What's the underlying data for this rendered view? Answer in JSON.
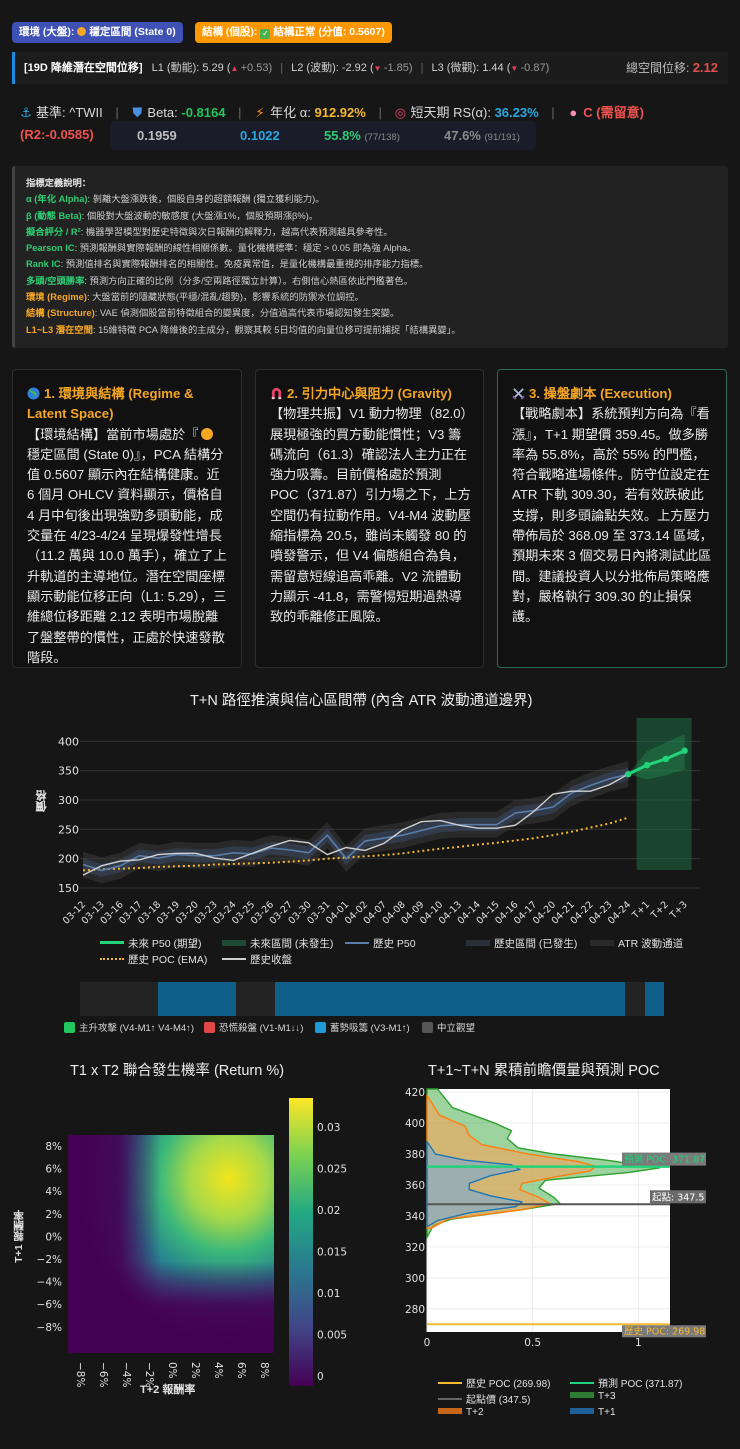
{
  "badges": {
    "regime": {
      "prefix": "環境 (大盤):",
      "value": "穩定區間 (State 0)",
      "icon": "sun-icon",
      "color": "#3f51b5"
    },
    "structure": {
      "prefix": "結構 (個股):",
      "value": "結構正常 (分值: 0.5607)",
      "icon": "check-icon",
      "color": "#ff9800"
    }
  },
  "latent": {
    "title": "[19D 降維潛在空間位移]",
    "l1_label": "L1 (動能): 5.29 (",
    "l1_delta": "+0.53)",
    "l2_label": "L2 (波動): -2.92 (",
    "l2_delta": "-1.85)",
    "l3_label": "L3 (微觀): 1.44 (",
    "l3_delta": "-0.87)",
    "total_label": "總空間位移:",
    "total_value": "2.12"
  },
  "stats": {
    "benchmark_label": "基準: ^TWII",
    "beta_label": "Beta:",
    "beta_value": "-0.8164",
    "alpha_label": "年化 α:",
    "alpha_value": "912.92%",
    "rs_label": "短天期 RS(α):",
    "rs_value": "36.23%",
    "grade": "C (需留意)",
    "r2": "(R2:-0.0585)",
    "pearson_ic": "0.1959",
    "rank_ic": "0.1022",
    "long_win": "55.8%",
    "long_win_detail": "(77/138)",
    "short_win": "47.6%",
    "short_win_detail": "(91/191)"
  },
  "definitions": {
    "title": "指標定義說明：",
    "items": [
      {
        "term": "α (年化 Alpha)",
        "desc": ": 剝離大盤漲跌後，個股自身的超額報酬 (獨立獲利能力)。",
        "color": "green"
      },
      {
        "term": "β (動態 Beta)",
        "desc": ": 個股對大盤波動的敏感度 (大盤漲1%，個股預期漲β%)。",
        "color": "green"
      },
      {
        "term": "擬合評分 / R²",
        "desc": ": 機器學習模型對歷史特徵與次日報酬的解釋力，越高代表預測越具參考性。",
        "color": "green"
      },
      {
        "term": "Pearson IC",
        "desc": ": 預測報酬與實際報酬的線性相關係數。量化機構標準：穩定 > 0.05 即為強 Alpha。",
        "color": "green"
      },
      {
        "term": "Rank IC",
        "desc": ": 預測值排名與實際報酬排名的相關性。免疫異常值，是量化機構最重視的排序能力指標。",
        "color": "green"
      },
      {
        "term": "多頭/空頭勝率",
        "desc": ": 預測方向正確的比例（分多/空兩路徑獨立計算）。右側信心熱區依此門檻著色。",
        "color": "green"
      },
      {
        "term": "環境 (Regime)",
        "desc": ": 大盤當前的隱藏狀態(平穩/混亂/趨勢)，影響系統的防禦水位調控。",
        "color": "orange"
      },
      {
        "term": "結構 (Structure)",
        "desc": ": VAE 偵測個股當前特徵組合的變異度，分值過高代表市場認知發生突變。",
        "color": "orange"
      },
      {
        "term": "L1~L3 潛在空間",
        "desc": ": 15維特徵 PCA 降維後的主成分，觀察其較 5日均值的向量位移可提前捕捉「結構異變」。",
        "color": "orange"
      }
    ]
  },
  "cards": [
    {
      "title": "1. 環境與結構 (Regime & Latent Space)",
      "icon": "globe-icon",
      "body_a": "【環境結構】當前市場處於『",
      "body_b": "穩定區間 (State 0)』，PCA 結構分值 0.5607 顯示內在結構健康。近 6 個月 OHLCV 資料顯示，價格自 4 月中旬後出現強勁多頭動能，成交量在 4/23-4/24 呈現爆發性增長（11.2 萬與 10.0 萬手），確立了上升軌道的主導地位。潛在空間座標顯示動能位移正向（L1: 5.29），三維總位移距離 2.12 表明市場脫離了盤整帶的慣性，正處於快速發散階段。"
    },
    {
      "title": "2. 引力中心與阻力 (Gravity)",
      "icon": "magnet-icon",
      "body": "【物理共振】V1 動力物理（82.0）展現極強的買方動能慣性；V3 籌碼流向（61.3）確認法人主力正在強力吸籌。目前價格處於預測 POC（371.87）引力場之下，上方空間仍有拉動作用。V4-M4 波動壓縮指標為 20.5，雖尚未觸發 80 的噴發警示，但 V4 偏態組合為負，需留意短線追高乖離。V2 流體動力顯示 -41.8，需警惕短期過熱導致的乖離修正風險。"
    },
    {
      "title": "3. 操盤劇本 (Execution)",
      "icon": "crossed-swords-icon",
      "body": "【戰略劇本】系統預判方向為『看漲』，T+1 期望價 359.45。做多勝率為 55.8%，高於 55% 的門檻，符合戰略進場條件。防守位設定在 ATR 下軌 309.30，若有效跌破此支撐，則多頭論點失效。上方壓力帶佈局於 368.09 至 373.14 區域，預期未來 3 個交易日內將測試此區間。建議投資人以分批佈局策略應對，嚴格執行 309.30 的止損保護。"
    }
  ],
  "chart_data": [
    {
      "type": "line",
      "title": "T+N 路徑推演與信心區間帶 (內含 ATR 波動通道邊界)",
      "xlabel": "",
      "ylabel": "價格",
      "ylim": [
        140,
        420
      ],
      "yticks": [
        150,
        200,
        250,
        300,
        350,
        400
      ],
      "categories": [
        "03-12",
        "03-13",
        "03-16",
        "03-17",
        "03-18",
        "03-19",
        "03-20",
        "03-23",
        "03-24",
        "03-25",
        "03-26",
        "03-27",
        "03-30",
        "03-31",
        "04-01",
        "04-02",
        "04-07",
        "04-08",
        "04-09",
        "04-10",
        "04-13",
        "04-14",
        "04-15",
        "04-16",
        "04-17",
        "04-20",
        "04-21",
        "04-22",
        "04-23",
        "04-24",
        "T+1",
        "T+2",
        "T+3"
      ],
      "series": [
        {
          "name": "歷史收盤",
          "color": "#d0d0d0",
          "values": [
            172,
            188,
            196,
            198,
            207,
            209,
            209,
            201,
            197,
            209,
            221,
            231,
            227,
            207,
            219,
            214,
            226,
            249,
            263,
            265,
            257,
            252,
            252,
            257,
            281,
            310,
            315,
            315,
            326,
            344,
            null,
            null,
            null
          ]
        },
        {
          "name": "歷史 P50",
          "color": "#5a7ca8",
          "values": [
            190,
            180,
            188,
            205,
            201,
            207,
            205,
            205,
            210,
            208,
            218,
            215,
            210,
            240,
            200,
            230,
            235,
            240,
            248,
            256,
            258,
            258,
            258,
            278,
            282,
            288,
            312,
            325,
            336,
            344,
            null,
            null,
            null
          ]
        },
        {
          "name": "歷史 POC (EMA)",
          "color": "#f5b82e",
          "values": [
            180,
            182,
            183,
            184,
            186,
            187,
            188,
            190,
            191,
            192,
            193,
            195,
            197,
            200,
            202,
            204,
            206,
            209,
            213,
            217,
            220,
            224,
            227,
            231,
            235,
            240,
            246,
            253,
            260,
            270,
            null,
            null,
            null
          ]
        },
        {
          "name": "未來 P50 (期望)",
          "color": "#22d37a",
          "values": [
            null,
            null,
            null,
            null,
            null,
            null,
            null,
            null,
            null,
            null,
            null,
            null,
            null,
            null,
            null,
            null,
            null,
            null,
            null,
            null,
            null,
            null,
            null,
            null,
            null,
            null,
            null,
            null,
            null,
            344,
            359.45,
            370,
            384
          ]
        }
      ],
      "legend": [
        "未來 P50 (期望)",
        "未來區間 (未發生)",
        "歷史 P50",
        "歷史區間 (已發生)",
        "ATR 波動通道",
        "歷史 POC (EMA)",
        "歷史收盤"
      ],
      "regime_bar": {
        "segments": [
          {
            "state": "neutral",
            "start": 0,
            "end": 4
          },
          {
            "state": "accumulate",
            "start": 4,
            "end": 8
          },
          {
            "state": "neutral",
            "start": 8,
            "end": 10
          },
          {
            "state": "accumulate",
            "start": 10,
            "end": 28
          },
          {
            "state": "neutral",
            "start": 28,
            "end": 29
          },
          {
            "state": "accumulate",
            "start": 29,
            "end": 30
          }
        ],
        "legend": [
          {
            "label": "主升攻擊 (V4-M1↑ V4-M4↑)",
            "color": "#22c55e"
          },
          {
            "label": "恐慌殺盤 (V1-M1↓↓)",
            "color": "#e04848"
          },
          {
            "label": "蓄勢吸籌 (V3-M1↑)",
            "color": "#1f9ad6"
          },
          {
            "label": "中立觀望",
            "color": "#555555"
          }
        ]
      }
    },
    {
      "type": "heatmap",
      "title": "T1 x T2 聯合發生機率 (Return %)",
      "xlabel": "T+2 報酬率",
      "ylabel": "T+1 報酬率",
      "xticks": [
        "−8%",
        "−6%",
        "−4%",
        "−2%",
        "0%",
        "2%",
        "4%",
        "6%",
        "8%"
      ],
      "yticks": [
        "8%",
        "6%",
        "4%",
        "2%",
        "0%",
        "−2%",
        "−4%",
        "−6%",
        "−8%"
      ],
      "colorbar_ticks": [
        "0.03",
        "0.025",
        "0.02",
        "0.015",
        "0.01",
        "0.005",
        "0"
      ],
      "zlim": [
        0,
        0.033
      ],
      "peak": {
        "x": "6%",
        "y": "6%",
        "value": 0.033
      }
    },
    {
      "type": "area",
      "title": "T+1~T+N 累積前瞻價量與預測 POC",
      "xticks": [
        "0",
        "0.5",
        "1"
      ],
      "yticks": [
        280,
        300,
        320,
        340,
        360,
        380,
        400,
        420
      ],
      "ylim": [
        265,
        422
      ],
      "annotations": [
        {
          "text": "預測 POC: 371.87",
          "y": 371.87
        },
        {
          "text": "起點: 347.5",
          "y": 347.5
        },
        {
          "text": "歷史 POC: 269.98",
          "y": 269.98
        }
      ],
      "series": [
        {
          "name": "歷史 POC (269.98)",
          "color": "#f5b82e"
        },
        {
          "name": "預測 POC (371.87)",
          "color": "#22d37a"
        },
        {
          "name": "起點價 (347.5)",
          "color": "#666666"
        },
        {
          "name": "T+3",
          "color": "#2ca02c"
        },
        {
          "name": "T+2",
          "color": "#ff7f0e"
        },
        {
          "name": "T+1",
          "color": "#1f77b4"
        }
      ]
    }
  ]
}
